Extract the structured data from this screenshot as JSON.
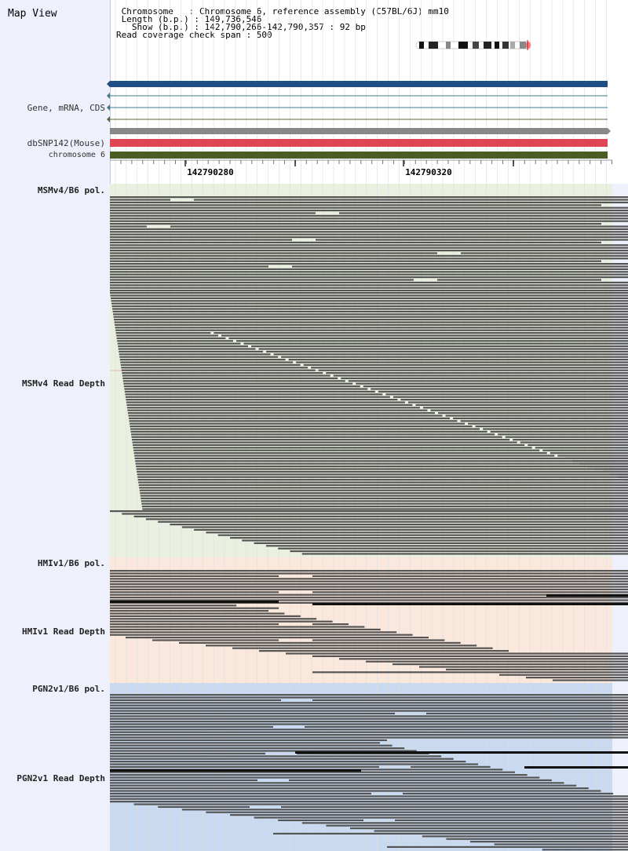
{
  "title": "Map View",
  "info": {
    "chromosome_line": " Chromosome   : Chromosome 6, reference assembly (C57BL/6J) mm10",
    "length_line": " Length (b.p.) : 149,736,546",
    "show_line": "   Show (b.p.) : 142,790,266-142,790,357 : 92 bp",
    "span_line": "Read coverage check span : 500"
  },
  "tracks": {
    "gene_label": "Gene, mRNA, CDS",
    "dbsnp_label": "dbSNP142(Mouse)",
    "chrom_label": "chromosome 6"
  },
  "axis": {
    "tick_labels": [
      "142790280",
      "142790320"
    ]
  },
  "groups": [
    {
      "pol_label": "MSMv4/B6 pol.",
      "depth_label": "MSMv4 Read Depth",
      "color": "#eaf0e0"
    },
    {
      "pol_label": "HMIv1/B6 pol.",
      "depth_label": "HMIv1 Read Depth",
      "color": "#fbe8dc"
    },
    {
      "pol_label": "PGN2v1/B6 pol.",
      "depth_label": "PGN2v1 Read Depth",
      "color": "#c9daf0"
    }
  ],
  "colors": {
    "gene_bar": "#1f4e86",
    "dbsnp_bar": "#e04553",
    "chrom_bar": "#4a5d23",
    "read": "#555555",
    "grid": "#dcdcdc"
  }
}
